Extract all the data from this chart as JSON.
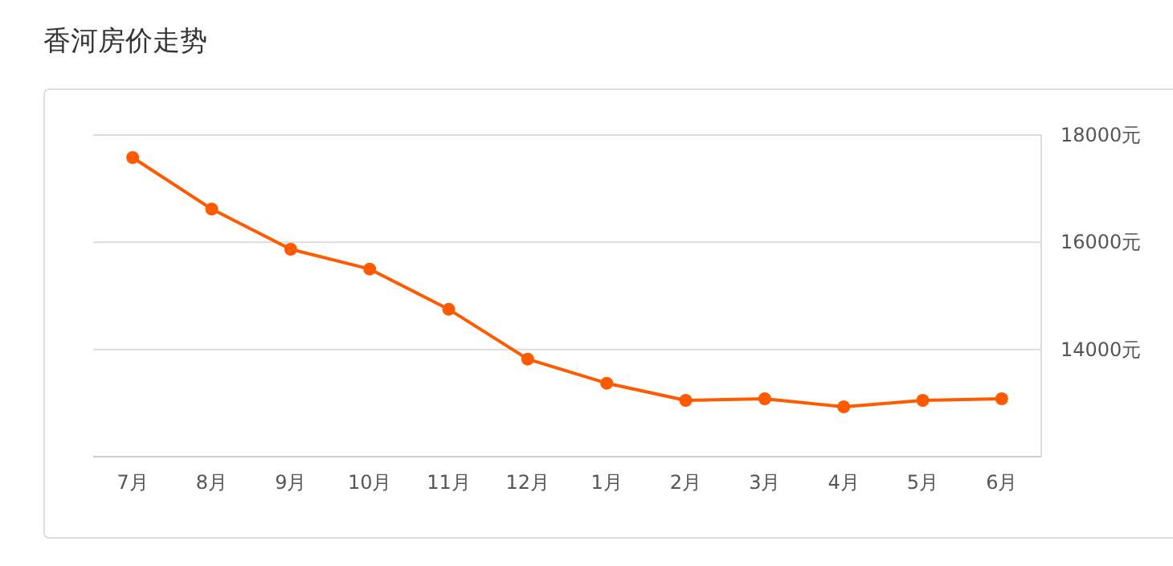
{
  "chart_data": {
    "type": "line",
    "title": "香河房价走势",
    "categories": [
      "7月",
      "8月",
      "9月",
      "10月",
      "11月",
      "12月",
      "1月",
      "2月",
      "3月",
      "4月",
      "5月",
      "6月"
    ],
    "series": [
      {
        "color": "#ff5a00",
        "values": [
          17580,
          16620,
          15870,
          15500,
          14750,
          13820,
          13370,
          13050,
          13080,
          12930,
          13050,
          13080
        ]
      }
    ],
    "ylim": [
      12000,
      18000
    ],
    "yticks": [
      {
        "value": 14000,
        "label": "14000元"
      },
      {
        "value": 16000,
        "label": "16000元"
      },
      {
        "value": 18000,
        "label": "18000元"
      }
    ],
    "grid": "y",
    "marker": "circle",
    "line_style": "solid"
  }
}
